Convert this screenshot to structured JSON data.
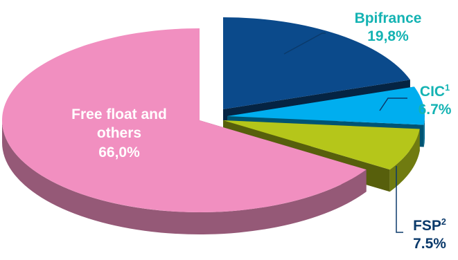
{
  "chart_data": {
    "type": "pie",
    "title": "",
    "slices": [
      {
        "label": "Bpifrance",
        "sup": "",
        "value_label": "19,8%",
        "value": 19.8,
        "color": "#0b4a8b",
        "label_color": "#14b3b3"
      },
      {
        "label": "CIC",
        "sup": "1",
        "value_label": "6.7%",
        "value": 6.7,
        "color": "#00aeef",
        "label_color": "#14b3b3"
      },
      {
        "label": "FSP",
        "sup": "2",
        "value_label": "7.5%",
        "value": 7.5,
        "color": "#b5c61a",
        "label_color": "#0b3a6b"
      },
      {
        "label": "Free float and others",
        "sup": "",
        "value_label": "66,0%",
        "value": 66.0,
        "color": "#f18fc0",
        "label_color": "#ffffff"
      }
    ]
  }
}
